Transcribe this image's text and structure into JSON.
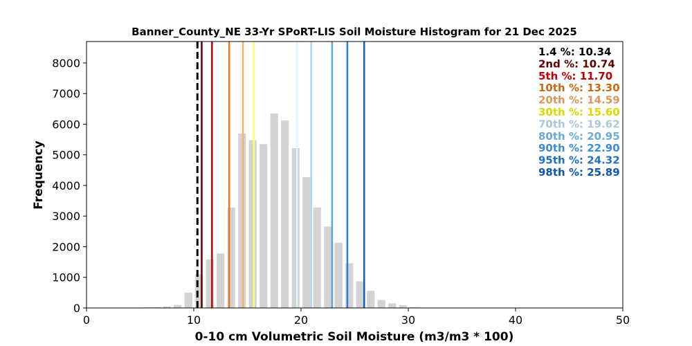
{
  "chart_data": {
    "type": "bar",
    "title": "Banner_County_NE 33-Yr SPoRT-LIS Soil Moisture Histogram for 21 Dec 2025",
    "xlabel": "0-10 cm Volumetric Soil Moisture (m3/m3 * 100)",
    "ylabel": "Frequency",
    "xlim": [
      0,
      50
    ],
    "ylim": [
      0,
      8700
    ],
    "xticks": [
      0,
      10,
      20,
      30,
      40,
      50
    ],
    "yticks": [
      0,
      1000,
      2000,
      3000,
      4000,
      5000,
      6000,
      7000,
      8000
    ],
    "bar_color": "#d3d3d3",
    "grid": false,
    "legend_position": "top-right",
    "bins": [
      {
        "x": 5.5,
        "value": 15
      },
      {
        "x": 6.5,
        "value": 25
      },
      {
        "x": 7.5,
        "value": 50
      },
      {
        "x": 8.5,
        "value": 100
      },
      {
        "x": 9.5,
        "value": 500
      },
      {
        "x": 10.5,
        "value": 1100
      },
      {
        "x": 11.5,
        "value": 1580
      },
      {
        "x": 12.5,
        "value": 1780
      },
      {
        "x": 13.5,
        "value": 3280
      },
      {
        "x": 14.5,
        "value": 5700
      },
      {
        "x": 15.5,
        "value": 5480
      },
      {
        "x": 16.5,
        "value": 5350
      },
      {
        "x": 17.5,
        "value": 6350
      },
      {
        "x": 18.5,
        "value": 6120
      },
      {
        "x": 19.5,
        "value": 5220
      },
      {
        "x": 20.5,
        "value": 4270
      },
      {
        "x": 21.5,
        "value": 3280
      },
      {
        "x": 22.5,
        "value": 2660
      },
      {
        "x": 23.5,
        "value": 2130
      },
      {
        "x": 24.5,
        "value": 1460
      },
      {
        "x": 25.5,
        "value": 870
      },
      {
        "x": 26.5,
        "value": 560
      },
      {
        "x": 27.5,
        "value": 260
      },
      {
        "x": 28.5,
        "value": 150
      },
      {
        "x": 29.5,
        "value": 90
      },
      {
        "x": 30.5,
        "value": 20
      }
    ],
    "current_value": {
      "value": 10.34,
      "color": "#000000",
      "style": "dashed"
    },
    "percentile_lines": [
      {
        "value": 10.74,
        "color": "#5c0000"
      },
      {
        "value": 11.7,
        "color": "#c00000"
      },
      {
        "value": 13.3,
        "color": "#e07b20"
      },
      {
        "value": 14.59,
        "color": "#f5b26b"
      },
      {
        "value": 15.6,
        "color": "#ffff70"
      },
      {
        "value": 19.62,
        "color": "#e0f6ff"
      },
      {
        "value": 20.95,
        "color": "#a9d7f0"
      },
      {
        "value": 22.9,
        "color": "#5aa6e0"
      },
      {
        "value": 24.32,
        "color": "#2a7dd8"
      },
      {
        "value": 25.89,
        "color": "#1060c0"
      }
    ],
    "legend": [
      {
        "label": "1.4 %",
        "value": "10.34",
        "label_color": "#000000",
        "value_color": "#000000"
      },
      {
        "label": "2nd %",
        "value": "10.74",
        "label_color": "#5c0000",
        "value_color": "#5c0000"
      },
      {
        "label": "5th %",
        "value": "11.70",
        "label_color": "#c00000",
        "value_color": "#c00000"
      },
      {
        "label": "10th %",
        "value": "13.30",
        "label_color": "#c86a10",
        "value_color": "#c86a10"
      },
      {
        "label": "20th %",
        "value": "14.59",
        "label_color": "#d9955a",
        "value_color": "#d9955a"
      },
      {
        "label": "30th %",
        "value": "15.60",
        "label_color": "#d9d900",
        "value_color": "#d9d900"
      },
      {
        "label": "70th %",
        "value": "19.62",
        "label_color": "#a8c8d8",
        "value_color": "#a8c8d8"
      },
      {
        "label": "80th %",
        "value": "20.95",
        "label_color": "#6aaad6",
        "value_color": "#6aaad6"
      },
      {
        "label": "90th %",
        "value": "22.90",
        "label_color": "#3a8cd8",
        "value_color": "#3a8cd8"
      },
      {
        "label": "95th %",
        "value": "24.32",
        "label_color": "#2070c8",
        "value_color": "#2070c8"
      },
      {
        "label": "98th %",
        "value": "25.89",
        "label_color": "#1055b0",
        "value_color": "#1055b0"
      }
    ]
  }
}
